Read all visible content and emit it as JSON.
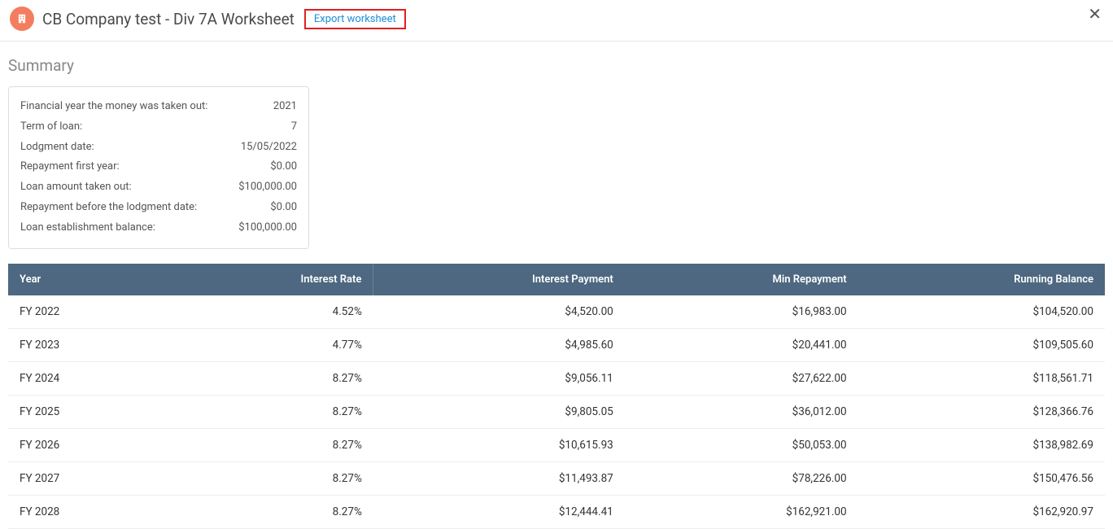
{
  "header": {
    "title": "CB Company test - Div 7A Worksheet",
    "export_label": "Export worksheet",
    "close_glyph": "✕"
  },
  "summary": {
    "heading": "Summary",
    "rows": [
      {
        "label": "Financial year the money was taken out:",
        "value": "2021"
      },
      {
        "label": "Term of loan:",
        "value": "7"
      },
      {
        "label": "Lodgment date:",
        "value": "15/05/2022"
      },
      {
        "label": "Repayment first year:",
        "value": "$0.00"
      },
      {
        "label": "Loan amount taken out:",
        "value": "$100,000.00"
      },
      {
        "label": "Repayment before the lodgment date:",
        "value": "$0.00"
      },
      {
        "label": "Loan establishment balance:",
        "value": "$100,000.00"
      }
    ]
  },
  "table": {
    "columns": [
      "Year",
      "Interest Rate",
      "Interest Payment",
      "Min Repayment",
      "Running Balance"
    ],
    "header_bg": "#4d6880",
    "rows": [
      {
        "year": "FY 2022",
        "rate": "4.52%",
        "interest": "$4,520.00",
        "min": "$16,983.00",
        "balance": "$104,520.00"
      },
      {
        "year": "FY 2023",
        "rate": "4.77%",
        "interest": "$4,985.60",
        "min": "$20,441.00",
        "balance": "$109,505.60"
      },
      {
        "year": "FY 2024",
        "rate": "8.27%",
        "interest": "$9,056.11",
        "min": "$27,622.00",
        "balance": "$118,561.71"
      },
      {
        "year": "FY 2025",
        "rate": "8.27%",
        "interest": "$9,805.05",
        "min": "$36,012.00",
        "balance": "$128,366.76"
      },
      {
        "year": "FY 2026",
        "rate": "8.27%",
        "interest": "$10,615.93",
        "min": "$50,053.00",
        "balance": "$138,982.69"
      },
      {
        "year": "FY 2027",
        "rate": "8.27%",
        "interest": "$11,493.87",
        "min": "$78,226.00",
        "balance": "$150,476.56"
      },
      {
        "year": "FY 2028",
        "rate": "8.27%",
        "interest": "$12,444.41",
        "min": "$162,921.00",
        "balance": "$162,920.97"
      }
    ]
  },
  "colors": {
    "company_icon_bg": "#f47d5f",
    "export_border": "#e02020",
    "export_text": "#1a8fd5",
    "table_header_bg": "#4d6880",
    "row_border": "#eeeeee"
  }
}
